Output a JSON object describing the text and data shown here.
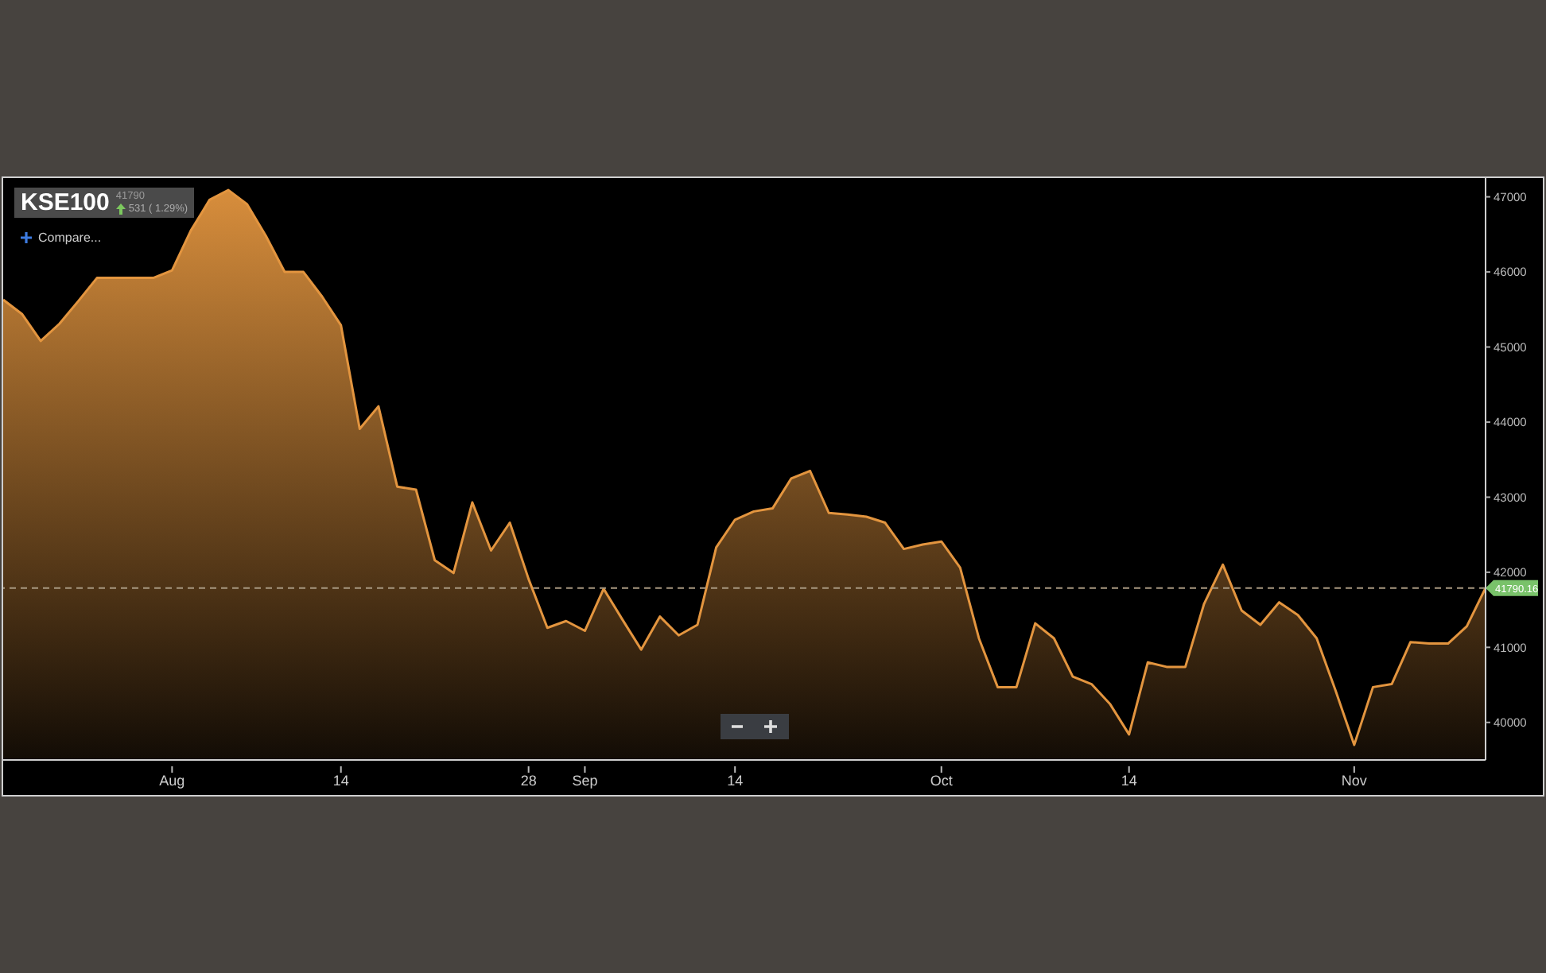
{
  "chart_data": {
    "type": "area",
    "title": "KSE100",
    "annotations": [
      "41790",
      "531 ( 1.29%)",
      "Compare..."
    ],
    "categories": [
      null,
      null,
      null,
      null,
      null,
      null,
      null,
      null,
      null,
      "Aug",
      null,
      null,
      null,
      null,
      null,
      null,
      null,
      null,
      "14",
      null,
      null,
      null,
      null,
      null,
      null,
      null,
      null,
      null,
      "28",
      null,
      null,
      "Sep",
      null,
      null,
      null,
      null,
      null,
      null,
      null,
      "14",
      null,
      null,
      null,
      null,
      null,
      null,
      null,
      null,
      null,
      null,
      "Oct",
      null,
      null,
      null,
      null,
      null,
      null,
      null,
      null,
      null,
      "14",
      null,
      null,
      null,
      null,
      null,
      null,
      null,
      null,
      null,
      null,
      null,
      "Nov",
      null,
      null,
      null,
      null,
      null,
      null,
      null
    ],
    "series": [
      {
        "color": "#e3953f",
        "values": [
          45630,
          45440,
          45080,
          45310,
          45610,
          45920,
          45920,
          45920,
          45920,
          46020,
          46550,
          46960,
          47090,
          46900,
          46480,
          46000,
          46000,
          45670,
          45290,
          43910,
          44210,
          43140,
          43100,
          42160,
          41990,
          42930,
          42290,
          42660,
          41910,
          41260,
          41350,
          41220,
          41780,
          41370,
          40970,
          41410,
          41160,
          41300,
          42330,
          42700,
          42810,
          42850,
          43250,
          43350,
          42790,
          42770,
          42740,
          42660,
          42310,
          42370,
          42410,
          42060,
          41120,
          40470,
          40470,
          41320,
          41120,
          40610,
          40510,
          40240,
          39840,
          40800,
          40740,
          40740,
          41580,
          42100,
          41490,
          41300,
          41600,
          41430,
          41120,
          40430,
          39700,
          40470,
          40510,
          41070,
          41050,
          41050,
          41280,
          41790
        ]
      }
    ],
    "ylim": [
      39500,
      47250
    ],
    "yticks": [
      40000,
      41000,
      42000,
      43000,
      44000,
      45000,
      46000,
      47000
    ],
    "ref_lines": [
      {
        "axis": "y",
        "value": 41790.16,
        "label": "41790.16",
        "color": "#a89880",
        "line_style": "dashed"
      }
    ],
    "grid": false,
    "legend": false
  }
}
